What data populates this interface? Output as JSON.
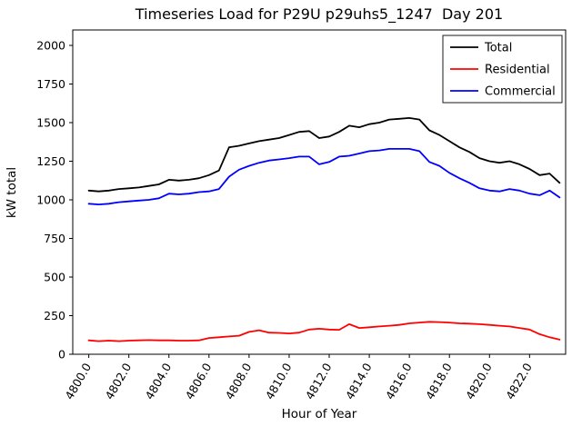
{
  "figure": {
    "background": "#ffffff"
  },
  "chart_data": {
    "type": "line",
    "title": "Timeseries Load for P29U p29uhs5_1247  Day 201",
    "xlabel": "Hour of Year",
    "ylabel": "kW total",
    "xlim": [
      4799.2,
      4823.8
    ],
    "ylim": [
      0,
      2100
    ],
    "grid": false,
    "legend_position": "upper right",
    "xticks": {
      "values": [
        4800,
        4802,
        4804,
        4806,
        4808,
        4810,
        4812,
        4814,
        4816,
        4818,
        4820,
        4822
      ],
      "labels": [
        "4800.0",
        "4802.0",
        "4804.0",
        "4806.0",
        "4808.0",
        "4810.0",
        "4812.0",
        "4814.0",
        "4816.0",
        "4818.0",
        "4820.0",
        "4822.0"
      ]
    },
    "yticks": {
      "values": [
        0,
        250,
        500,
        750,
        1000,
        1250,
        1500,
        1750,
        2000
      ],
      "labels": [
        "0",
        "250",
        "500",
        "750",
        "1000",
        "1250",
        "1500",
        "1750",
        "2000"
      ]
    },
    "x": [
      4800.0,
      4800.5,
      4801.0,
      4801.5,
      4802.0,
      4802.5,
      4803.0,
      4803.5,
      4804.0,
      4804.5,
      4805.0,
      4805.5,
      4806.0,
      4806.5,
      4807.0,
      4807.5,
      4808.0,
      4808.5,
      4809.0,
      4809.5,
      4810.0,
      4810.5,
      4811.0,
      4811.5,
      4812.0,
      4812.5,
      4813.0,
      4813.5,
      4814.0,
      4814.5,
      4815.0,
      4815.5,
      4816.0,
      4816.5,
      4817.0,
      4817.5,
      4818.0,
      4818.5,
      4819.0,
      4819.5,
      4820.0,
      4820.5,
      4821.0,
      4821.5,
      4822.0,
      4822.5,
      4823.0,
      4823.5
    ],
    "series": [
      {
        "name": "Total",
        "color": "#000000",
        "values": [
          1060,
          1055,
          1060,
          1070,
          1075,
          1080,
          1090,
          1100,
          1130,
          1125,
          1130,
          1140,
          1160,
          1190,
          1340,
          1350,
          1365,
          1380,
          1390,
          1400,
          1420,
          1440,
          1445,
          1400,
          1410,
          1440,
          1480,
          1470,
          1490,
          1500,
          1520,
          1525,
          1530,
          1520,
          1450,
          1420,
          1380,
          1340,
          1310,
          1270,
          1250,
          1240,
          1250,
          1230,
          1200,
          1160,
          1170,
          1110
        ]
      },
      {
        "name": "Residential",
        "color": "#ff0000",
        "values": [
          90,
          85,
          88,
          85,
          88,
          90,
          92,
          90,
          90,
          88,
          88,
          90,
          105,
          110,
          115,
          120,
          145,
          155,
          140,
          138,
          135,
          140,
          160,
          165,
          160,
          158,
          195,
          170,
          175,
          180,
          185,
          190,
          200,
          205,
          210,
          208,
          205,
          200,
          198,
          195,
          190,
          185,
          180,
          170,
          160,
          130,
          110,
          95
        ]
      },
      {
        "name": "Commercial",
        "color": "#0000ff",
        "values": [
          975,
          970,
          975,
          985,
          990,
          995,
          1000,
          1010,
          1040,
          1035,
          1040,
          1050,
          1055,
          1070,
          1150,
          1195,
          1220,
          1240,
          1255,
          1262,
          1270,
          1280,
          1280,
          1230,
          1245,
          1280,
          1285,
          1300,
          1315,
          1320,
          1330,
          1330,
          1330,
          1315,
          1245,
          1220,
          1175,
          1140,
          1110,
          1075,
          1060,
          1055,
          1070,
          1060,
          1040,
          1030,
          1060,
          1015
        ]
      }
    ]
  }
}
